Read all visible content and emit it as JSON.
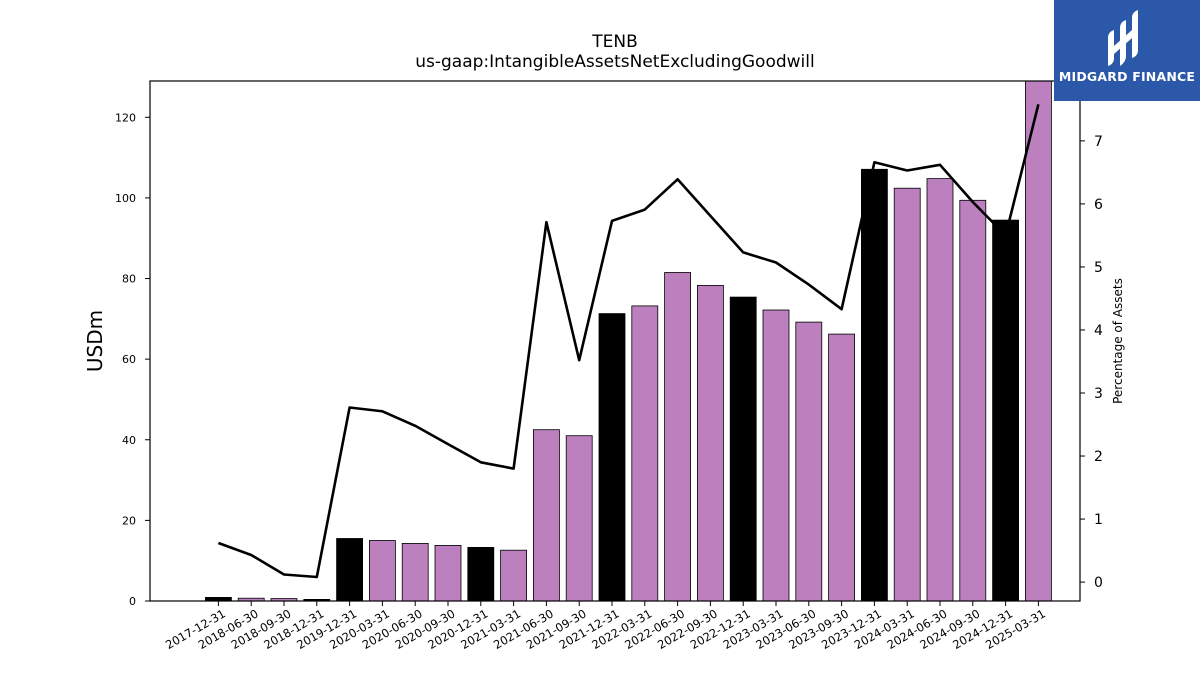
{
  "title": {
    "line1": "TENB",
    "line2": "us-gaap:IntangibleAssetsNetExcludingGoodwill"
  },
  "logo": {
    "text": "MIDGARD FINANCE",
    "background": "#2b58a8"
  },
  "chart_data": {
    "type": "bar",
    "categories": [
      "2017-12-31",
      "2018-06-30",
      "2018-09-30",
      "2018-12-31",
      "2019-12-31",
      "2020-03-31",
      "2020-06-30",
      "2020-09-30",
      "2020-12-31",
      "2021-03-31",
      "2021-06-30",
      "2021-09-30",
      "2021-12-31",
      "2022-03-31",
      "2022-06-30",
      "2022-09-30",
      "2022-12-31",
      "2023-03-31",
      "2023-06-30",
      "2023-09-30",
      "2023-12-31",
      "2024-03-31",
      "2024-06-30",
      "2024-09-30",
      "2024-12-31",
      "2025-03-31"
    ],
    "values": [
      0.9,
      0.7,
      0.6,
      0.4,
      15.5,
      15.0,
      14.3,
      13.8,
      13.3,
      12.6,
      42.5,
      41.0,
      71.3,
      73.2,
      81.5,
      78.3,
      75.4,
      72.2,
      69.2,
      66.2,
      107.1,
      102.4,
      104.8,
      99.4,
      94.5,
      129.0
    ],
    "annual": [
      true,
      false,
      false,
      true,
      true,
      false,
      false,
      false,
      true,
      false,
      false,
      false,
      true,
      false,
      false,
      false,
      true,
      false,
      false,
      false,
      true,
      false,
      false,
      false,
      true,
      false
    ],
    "series": [
      {
        "name": "",
        "values": [
          0.9,
          0.7,
          0.6,
          0.4,
          15.5,
          15.0,
          14.3,
          13.8,
          13.3,
          12.6,
          42.5,
          41.0,
          71.3,
          73.2,
          81.5,
          78.3,
          75.4,
          72.2,
          69.2,
          66.2,
          107.1,
          102.4,
          104.8,
          99.4,
          94.5,
          129.0
        ]
      },
      {
        "name": "",
        "axis": "right",
        "values": [
          0.62,
          0.43,
          0.12,
          0.08,
          2.77,
          2.71,
          2.48,
          2.19,
          1.9,
          1.8,
          5.71,
          3.52,
          5.73,
          5.91,
          6.39,
          5.81,
          5.23,
          5.07,
          4.72,
          4.33,
          6.66,
          6.53,
          6.62,
          6.03,
          5.5,
          7.58
        ]
      }
    ],
    "ylabel": "USDm",
    "ylabel_right": "Percentage of Assets",
    "ylim": [
      0,
      129
    ],
    "ylim_right": [
      -0.3,
      7.95
    ],
    "yticks": [
      0,
      20,
      40,
      60,
      80,
      100,
      120
    ],
    "yticks_right": [
      0,
      1,
      2,
      3,
      4,
      5,
      6,
      7
    ],
    "colors": {
      "annual_bar": "#000000",
      "quarter_bar": "#bb80bd",
      "line": "#000000"
    },
    "grid": false,
    "legend": "none"
  }
}
